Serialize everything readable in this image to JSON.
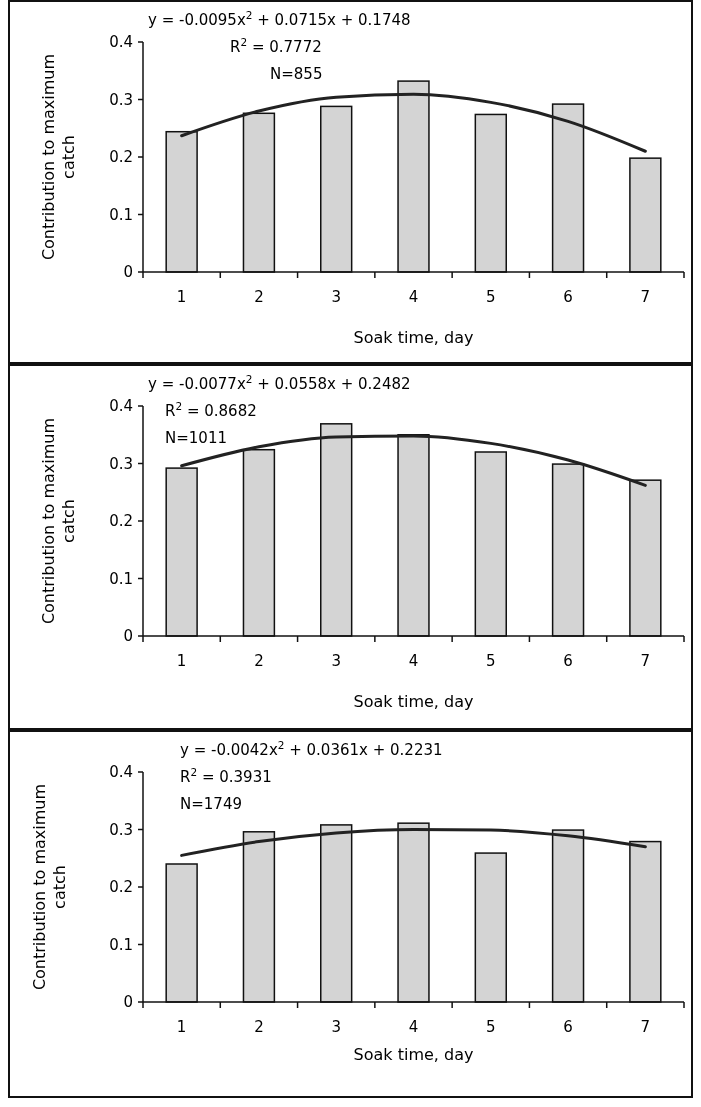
{
  "chart_data": [
    {
      "type": "bar",
      "categories": [
        "1",
        "2",
        "3",
        "4",
        "5",
        "6",
        "7"
      ],
      "xlabel": "Soak time, day",
      "ylabel": "Contribution to maximum catch",
      "ylim": [
        0,
        0.4
      ],
      "yticks": [
        0,
        0.1,
        0.2,
        0.3,
        0.4
      ],
      "annotations": [
        "y = -0.0095x$^{2}$ + 0.0715x + 0.1748",
        "R$^{2}$ = 0.7772",
        "N=855"
      ],
      "series": [
        {
          "type": "bar",
          "color": "#d4d4d4",
          "values": [
            0.244,
            0.276,
            0.288,
            0.332,
            0.274,
            0.292,
            0.198
          ]
        },
        {
          "type": "line",
          "color": "#222222",
          "marker": "none",
          "line_style": "solid",
          "x": [
            "1",
            "2",
            "3",
            "4",
            "5",
            "6",
            "7"
          ],
          "values": [
            0.237,
            0.28,
            0.304,
            0.309,
            0.295,
            0.262,
            0.21
          ]
        }
      ]
    },
    {
      "type": "bar",
      "categories": [
        "1",
        "2",
        "3",
        "4",
        "5",
        "6",
        "7"
      ],
      "xlabel": "Soak time, day",
      "ylabel": "Contribution to maximum catch",
      "ylim": [
        0,
        0.4
      ],
      "yticks": [
        0,
        0.1,
        0.2,
        0.3,
        0.4
      ],
      "annotations": [
        "y = -0.0077x$^{2}$ + 0.0558x + 0.2482",
        "R$^{2}$ = 0.8682",
        "N=1011"
      ],
      "series": [
        {
          "type": "bar",
          "color": "#d4d4d4",
          "values": [
            0.292,
            0.324,
            0.369,
            0.35,
            0.32,
            0.299,
            0.271
          ]
        },
        {
          "type": "line",
          "color": "#222222",
          "marker": "none",
          "line_style": "solid",
          "x": [
            "1",
            "2",
            "3",
            "4",
            "5",
            "6",
            "7"
          ],
          "values": [
            0.296,
            0.329,
            0.346,
            0.348,
            0.335,
            0.306,
            0.262
          ]
        }
      ]
    },
    {
      "type": "bar",
      "categories": [
        "1",
        "2",
        "3",
        "4",
        "5",
        "6",
        "7"
      ],
      "xlabel": "Soak time, day",
      "ylabel": "Contribution to maximum catch",
      "ylim": [
        0,
        0.4
      ],
      "yticks": [
        0,
        0.1,
        0.2,
        0.3,
        0.4
      ],
      "annotations": [
        "y = -0.0042x$^{2}$ + 0.0361x + 0.2231",
        "R$^{2}$ = 0.3931",
        "N=1749"
      ],
      "series": [
        {
          "type": "bar",
          "color": "#d4d4d4",
          "values": [
            0.24,
            0.296,
            0.308,
            0.311,
            0.259,
            0.299,
            0.279
          ]
        },
        {
          "type": "line",
          "color": "#222222",
          "marker": "none",
          "line_style": "solid",
          "x": [
            "1",
            "2",
            "3",
            "4",
            "5",
            "6",
            "7"
          ],
          "values": [
            0.255,
            0.279,
            0.294,
            0.3,
            0.299,
            0.289,
            0.27
          ]
        }
      ]
    }
  ]
}
